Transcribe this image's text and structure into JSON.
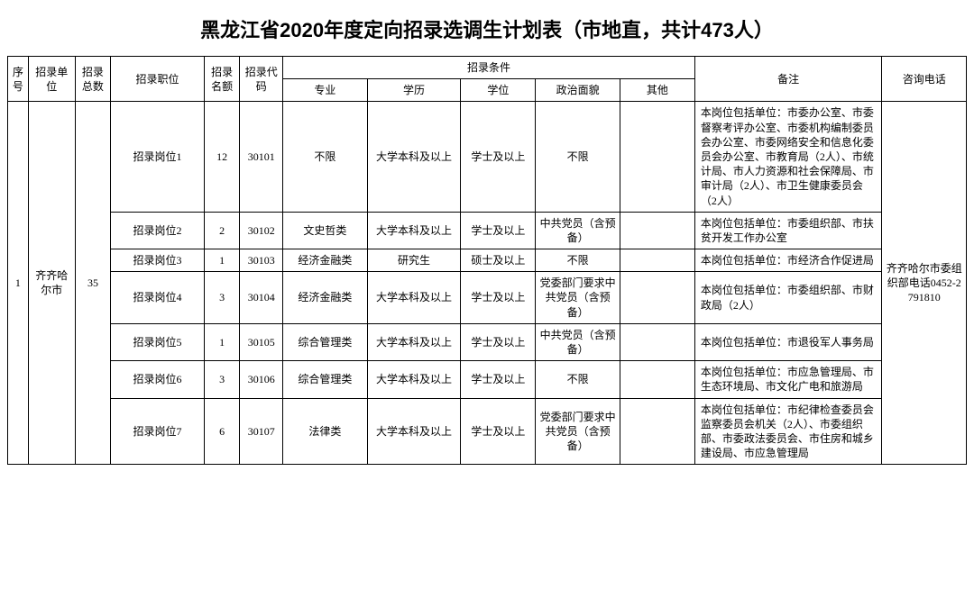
{
  "title": "黑龙江省2020年度定向招录选调生计划表（市地直，共计473人）",
  "headers": {
    "seq": "序号",
    "unit": "招录单位",
    "total": "招录总数",
    "position": "招录职位",
    "quota": "招录名额",
    "code": "招录代码",
    "condGroup": "招录条件",
    "major": "专业",
    "education": "学历",
    "degree": "学位",
    "political": "政治面貌",
    "other": "其他",
    "remark": "备注",
    "phone": "咨询电话"
  },
  "group": {
    "seq": "1",
    "unit": "齐齐哈尔市",
    "total": "35",
    "phone": "齐齐哈尔市委组织部电话0452-2791810"
  },
  "rows": [
    {
      "position": "招录岗位1",
      "quota": "12",
      "code": "30101",
      "major": "不限",
      "education": "大学本科及以上",
      "degree": "学士及以上",
      "political": "不限",
      "other": "",
      "remark": "本岗位包括单位：市委办公室、市委督察考评办公室、市委机构编制委员会办公室、市委网络安全和信息化委员会办公室、市教育局（2人）、市统计局、市人力资源和社会保障局、市审计局（2人）、市卫生健康委员会（2人）"
    },
    {
      "position": "招录岗位2",
      "quota": "2",
      "code": "30102",
      "major": "文史哲类",
      "education": "大学本科及以上",
      "degree": "学士及以上",
      "political": "中共党员（含预备）",
      "other": "",
      "remark": "本岗位包括单位：市委组织部、市扶贫开发工作办公室"
    },
    {
      "position": "招录岗位3",
      "quota": "1",
      "code": "30103",
      "major": "经济金融类",
      "education": "研究生",
      "degree": "硕士及以上",
      "political": "不限",
      "other": "",
      "remark": "本岗位包括单位：市经济合作促进局"
    },
    {
      "position": "招录岗位4",
      "quota": "3",
      "code": "30104",
      "major": "经济金融类",
      "education": "大学本科及以上",
      "degree": "学士及以上",
      "political": "党委部门要求中共党员（含预备）",
      "other": "",
      "remark": "本岗位包括单位：市委组织部、市财政局（2人）"
    },
    {
      "position": "招录岗位5",
      "quota": "1",
      "code": "30105",
      "major": "综合管理类",
      "education": "大学本科及以上",
      "degree": "学士及以上",
      "political": "中共党员（含预备）",
      "other": "",
      "remark": "本岗位包括单位：市退役军人事务局"
    },
    {
      "position": "招录岗位6",
      "quota": "3",
      "code": "30106",
      "major": "综合管理类",
      "education": "大学本科及以上",
      "degree": "学士及以上",
      "political": "不限",
      "other": "",
      "remark": "本岗位包括单位：市应急管理局、市生态环境局、市文化广电和旅游局"
    },
    {
      "position": "招录岗位7",
      "quota": "6",
      "code": "30107",
      "major": "法律类",
      "education": "大学本科及以上",
      "degree": "学士及以上",
      "political": "党委部门要求中共党员（含预备）",
      "other": "",
      "remark": "本岗位包括单位：市纪律检查委员会监察委员会机关（2人）、市委组织部、市委政法委员会、市住房和城乡建设局、市应急管理局"
    }
  ]
}
